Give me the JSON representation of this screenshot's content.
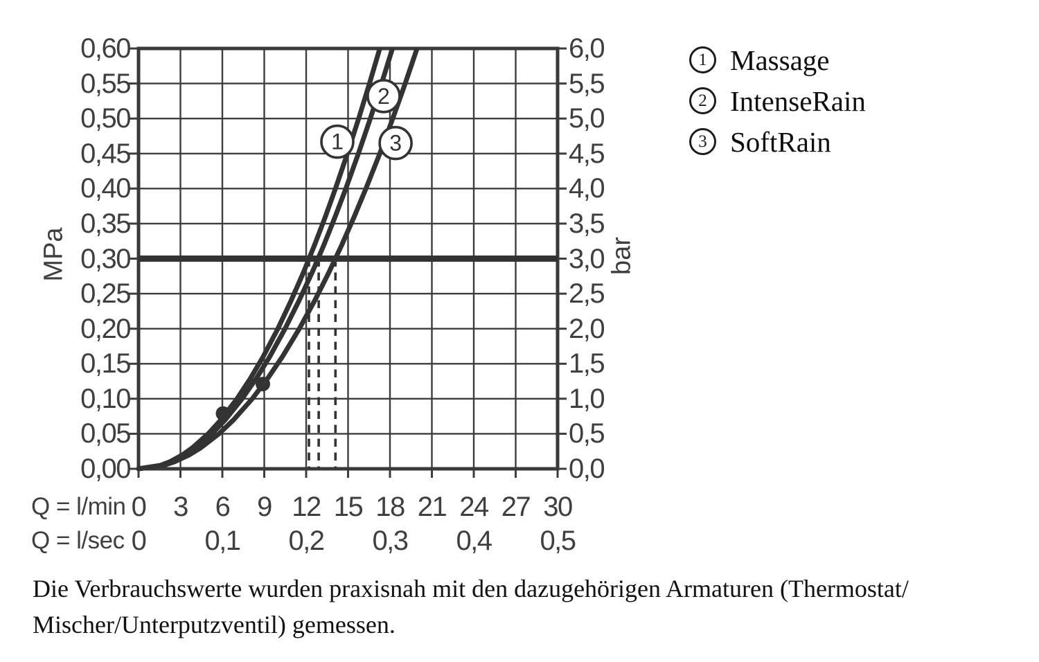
{
  "chart_data": {
    "type": "line",
    "title": "",
    "x_axis": {
      "row1_label": "Q = l/min",
      "row1_ticks": [
        "0",
        "3",
        "6",
        "9",
        "12",
        "15",
        "18",
        "21",
        "24",
        "27",
        "30"
      ],
      "row1_values_lmin": [
        0,
        3,
        6,
        9,
        12,
        15,
        18,
        21,
        24,
        27,
        30
      ],
      "row2_label": "Q = l/sec",
      "row2_ticks": [
        "0",
        "0,1",
        "0,2",
        "0,3",
        "0,4",
        "0,5"
      ],
      "row2_positions_lmin": [
        0,
        6,
        12,
        18,
        24,
        30
      ],
      "range_lmin": [
        0,
        30
      ],
      "grid_step_lmin": 3
    },
    "y_axis_left": {
      "unit": "MPa",
      "ticks": [
        "0,60",
        "0,55",
        "0,50",
        "0,45",
        "0,40",
        "0,35",
        "0,30",
        "0,25",
        "0,20",
        "0,15",
        "0,10",
        "0,05",
        "0,00"
      ],
      "range_mpa": [
        0,
        0.6
      ],
      "grid_step_mpa": 0.05
    },
    "y_axis_right": {
      "unit": "bar",
      "ticks": [
        "6,0",
        "5,5",
        "5,0",
        "4,5",
        "4,0",
        "3,5",
        "3,0",
        "2,5",
        "2,0",
        "1,5",
        "1,0",
        "0,5",
        "0,0"
      ],
      "range_bar": [
        0,
        6.0
      ]
    },
    "grid": {
      "x_divisions": 10,
      "y_divisions": 12,
      "grid_on": true
    },
    "reference_line": {
      "value_mpa": 0.3,
      "value_bar": 3.0
    },
    "dashed_flow_marks_lmin": [
      12.2,
      12.9,
      14.1
    ],
    "series": [
      {
        "id": "1",
        "name": "Massage",
        "flow_at_3bar_lmin": 12.2,
        "label_pos": {
          "q_lmin": 14.23,
          "p_mpa": 0.467
        },
        "points_q_lmin_p_mpa": [
          [
            0,
            0
          ],
          [
            1.58,
            0.005
          ],
          [
            2.23,
            0.01
          ],
          [
            3.15,
            0.02
          ],
          [
            3.86,
            0.03
          ],
          [
            4.99,
            0.05
          ],
          [
            5.9,
            0.07
          ],
          [
            7.05,
            0.1
          ],
          [
            8.04,
            0.13
          ],
          [
            8.92,
            0.16
          ],
          [
            9.97,
            0.2
          ],
          [
            10.92,
            0.24
          ],
          [
            11.8,
            0.28
          ],
          [
            12.61,
            0.32
          ],
          [
            13.38,
            0.36
          ],
          [
            14.1,
            0.4
          ],
          [
            14.95,
            0.45
          ],
          [
            15.76,
            0.5
          ],
          [
            16.53,
            0.55
          ],
          [
            17.27,
            0.6
          ],
          [
            17.98,
            0.65
          ]
        ]
      },
      {
        "id": "2",
        "name": "IntenseRain",
        "flow_at_3bar_lmin": 12.9,
        "label_pos": {
          "q_lmin": 17.55,
          "p_mpa": 0.532
        },
        "points_q_lmin_p_mpa": [
          [
            0,
            0
          ],
          [
            1.66,
            0.005
          ],
          [
            2.35,
            0.01
          ],
          [
            3.32,
            0.02
          ],
          [
            4.06,
            0.03
          ],
          [
            5.25,
            0.05
          ],
          [
            6.21,
            0.07
          ],
          [
            7.42,
            0.1
          ],
          [
            8.46,
            0.13
          ],
          [
            9.39,
            0.16
          ],
          [
            10.49,
            0.2
          ],
          [
            11.49,
            0.24
          ],
          [
            12.42,
            0.28
          ],
          [
            13.28,
            0.32
          ],
          [
            14.08,
            0.36
          ],
          [
            14.84,
            0.4
          ],
          [
            15.74,
            0.45
          ],
          [
            16.59,
            0.5
          ],
          [
            17.4,
            0.55
          ],
          [
            18.18,
            0.6
          ],
          [
            18.92,
            0.65
          ]
        ]
      },
      {
        "id": "3",
        "name": "SoftRain",
        "flow_at_3bar_lmin": 14.1,
        "label_pos": {
          "q_lmin": 18.4,
          "p_mpa": 0.465
        },
        "points_q_lmin_p_mpa": [
          [
            0,
            0
          ],
          [
            1.82,
            0.005
          ],
          [
            2.57,
            0.01
          ],
          [
            3.64,
            0.02
          ],
          [
            4.46,
            0.03
          ],
          [
            5.76,
            0.05
          ],
          [
            6.81,
            0.07
          ],
          [
            8.14,
            0.1
          ],
          [
            9.28,
            0.13
          ],
          [
            10.3,
            0.16
          ],
          [
            11.51,
            0.2
          ],
          [
            12.61,
            0.24
          ],
          [
            13.62,
            0.28
          ],
          [
            14.56,
            0.32
          ],
          [
            15.44,
            0.36
          ],
          [
            16.28,
            0.4
          ],
          [
            17.27,
            0.45
          ],
          [
            18.2,
            0.5
          ],
          [
            19.09,
            0.55
          ],
          [
            19.94,
            0.6
          ],
          [
            20.76,
            0.65
          ]
        ]
      }
    ],
    "measurement_dots": [
      {
        "q_lmin": 6.05,
        "p_mpa": 0.079
      },
      {
        "q_lmin": 8.9,
        "p_mpa": 0.121
      }
    ],
    "ink_color": "#333333",
    "background_color": "#ffffff"
  },
  "legend": {
    "items": [
      {
        "number": "1",
        "label": "Massage"
      },
      {
        "number": "2",
        "label": "IntenseRain"
      },
      {
        "number": "3",
        "label": "SoftRain"
      }
    ]
  },
  "caption": {
    "line1": "Die Verbrauchswerte wurden praxisnah mit den dazugehörigen Armaturen (Thermostat/",
    "line2": "Mischer/Unterputzventil) gemessen."
  }
}
